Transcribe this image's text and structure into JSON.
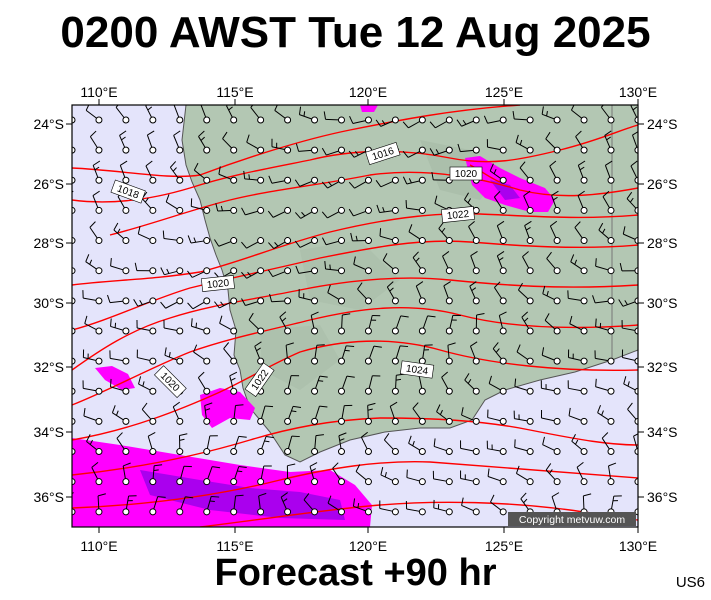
{
  "title": "0200 AWST Tue 12 Aug 2025",
  "footer": "Forecast +90 hr",
  "region_code": "US6",
  "copyright": "Copyright metvuw.com",
  "lon_labels": [
    "110°E",
    "115°E",
    "120°E",
    "125°E",
    "130°E"
  ],
  "lat_labels": [
    "24°S",
    "26°S",
    "28°S",
    "30°S",
    "32°S",
    "34°S",
    "36°S"
  ],
  "isobar_labels": [
    "1016",
    "1018",
    "1020",
    "1020",
    "1022",
    "1020",
    "1022",
    "1024"
  ],
  "colors": {
    "ocean": "#e4e4fb",
    "land": "#b3c7b3",
    "isobar": "#ff0000",
    "rain_light": "#ff00ff",
    "rain_heavy": "#aa00ee"
  }
}
